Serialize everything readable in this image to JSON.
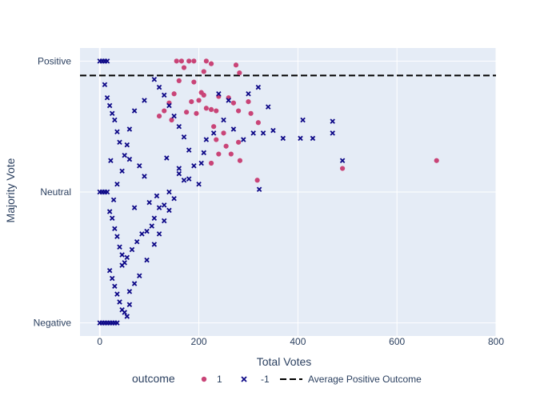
{
  "chart_data": {
    "type": "scatter",
    "xlabel": "Total Votes",
    "ylabel": "Majority Vote",
    "xlim": [
      -40,
      800
    ],
    "ylim": [
      -1.1,
      1.1
    ],
    "x_ticks": [
      0,
      200,
      400,
      600,
      800
    ],
    "y_ticks": [
      {
        "value": 1,
        "label": "Positive"
      },
      {
        "value": 0,
        "label": "Neutral"
      },
      {
        "value": -1,
        "label": "Negative"
      }
    ],
    "grid": true,
    "legend": {
      "title": "outcome",
      "position": "bottom",
      "entries": [
        "1",
        "-1",
        "Average Positive Outcome"
      ]
    },
    "colors": {
      "positive": "#c94477",
      "negative": "#0d0887",
      "reference": "#000000",
      "plot_bg": "#e5ecf6",
      "grid": "#ffffff",
      "text": "#2a3f5f"
    },
    "reference_line": {
      "name": "Average Positive Outcome",
      "y": 0.89,
      "style": "dash"
    },
    "series": [
      {
        "name": "1",
        "marker": "circle",
        "color": "#c94477",
        "points": [
          [
            155,
            1.0
          ],
          [
            165,
            1.0
          ],
          [
            180,
            1.0
          ],
          [
            190,
            1.0
          ],
          [
            215,
            1.0
          ],
          [
            225,
            0.98
          ],
          [
            275,
            0.97
          ],
          [
            282,
            0.91
          ],
          [
            170,
            0.95
          ],
          [
            160,
            0.85
          ],
          [
            190,
            0.84
          ],
          [
            205,
            0.76
          ],
          [
            210,
            0.74
          ],
          [
            240,
            0.73
          ],
          [
            260,
            0.72
          ],
          [
            300,
            0.69
          ],
          [
            185,
            0.69
          ],
          [
            215,
            0.64
          ],
          [
            225,
            0.63
          ],
          [
            235,
            0.62
          ],
          [
            270,
            0.68
          ],
          [
            280,
            0.62
          ],
          [
            175,
            0.61
          ],
          [
            195,
            0.6
          ],
          [
            230,
            0.5
          ],
          [
            250,
            0.45
          ],
          [
            235,
            0.4
          ],
          [
            255,
            0.35
          ],
          [
            280,
            0.38
          ],
          [
            305,
            0.6
          ],
          [
            320,
            0.53
          ],
          [
            225,
            0.22
          ],
          [
            240,
            0.29
          ],
          [
            265,
            0.29
          ],
          [
            283,
            0.24
          ],
          [
            318,
            0.09
          ],
          [
            490,
            0.18
          ],
          [
            680,
            0.24
          ],
          [
            145,
            0.55
          ],
          [
            120,
            0.58
          ],
          [
            130,
            0.62
          ],
          [
            200,
            0.7
          ],
          [
            210,
            0.92
          ],
          [
            150,
            0.75
          ],
          [
            140,
            0.68
          ]
        ]
      },
      {
        "name": "-1",
        "marker": "x",
        "color": "#0d0887",
        "points": [
          [
            0,
            1.0
          ],
          [
            5,
            1.0
          ],
          [
            10,
            1.0
          ],
          [
            15,
            1.0
          ],
          [
            0,
            0.0
          ],
          [
            5,
            0.0
          ],
          [
            10,
            0.0
          ],
          [
            15,
            0.0
          ],
          [
            0,
            -1.0
          ],
          [
            5,
            -1.0
          ],
          [
            10,
            -1.0
          ],
          [
            15,
            -1.0
          ],
          [
            20,
            -1.0
          ],
          [
            25,
            -1.0
          ],
          [
            30,
            -1.0
          ],
          [
            35,
            -1.0
          ],
          [
            320,
            0.8
          ],
          [
            300,
            0.75
          ],
          [
            340,
            0.65
          ],
          [
            410,
            0.55
          ],
          [
            405,
            0.41
          ],
          [
            470,
            0.45
          ],
          [
            490,
            0.24
          ],
          [
            470,
            0.54
          ],
          [
            430,
            0.41
          ],
          [
            370,
            0.41
          ],
          [
            350,
            0.47
          ],
          [
            330,
            0.45
          ],
          [
            322,
            0.02
          ],
          [
            310,
            0.45
          ],
          [
            290,
            0.4
          ],
          [
            270,
            0.48
          ],
          [
            260,
            0.7
          ],
          [
            240,
            0.75
          ],
          [
            250,
            0.55
          ],
          [
            230,
            0.45
          ],
          [
            215,
            0.4
          ],
          [
            210,
            0.3
          ],
          [
            205,
            0.22
          ],
          [
            190,
            0.2
          ],
          [
            200,
            0.06
          ],
          [
            180,
            0.1
          ],
          [
            170,
            0.09
          ],
          [
            160,
            0.14
          ],
          [
            150,
            -0.05
          ],
          [
            140,
            0.0
          ],
          [
            130,
            -0.1
          ],
          [
            120,
            -0.12
          ],
          [
            110,
            -0.2
          ],
          [
            105,
            -0.26
          ],
          [
            95,
            -0.3
          ],
          [
            85,
            -0.32
          ],
          [
            75,
            -0.38
          ],
          [
            65,
            -0.44
          ],
          [
            55,
            -0.5
          ],
          [
            45,
            -0.56
          ],
          [
            160,
            0.18
          ],
          [
            135,
            0.26
          ],
          [
            115,
            -0.03
          ],
          [
            100,
            -0.08
          ],
          [
            90,
            0.12
          ],
          [
            80,
            0.2
          ],
          [
            70,
            -0.12
          ],
          [
            60,
            0.25
          ],
          [
            50,
            0.28
          ],
          [
            40,
            0.38
          ],
          [
            35,
            0.46
          ],
          [
            30,
            0.55
          ],
          [
            25,
            0.6
          ],
          [
            20,
            0.66
          ],
          [
            15,
            0.72
          ],
          [
            10,
            0.82
          ],
          [
            20,
            -0.15
          ],
          [
            25,
            -0.2
          ],
          [
            30,
            -0.28
          ],
          [
            35,
            -0.34
          ],
          [
            40,
            -0.42
          ],
          [
            45,
            -0.48
          ],
          [
            50,
            -0.54
          ],
          [
            20,
            -0.6
          ],
          [
            25,
            -0.66
          ],
          [
            30,
            -0.72
          ],
          [
            35,
            -0.78
          ],
          [
            40,
            -0.84
          ],
          [
            45,
            -0.9
          ],
          [
            50,
            -0.92
          ],
          [
            55,
            -0.95
          ],
          [
            60,
            -0.86
          ],
          [
            60,
            -0.76
          ],
          [
            70,
            -0.7
          ],
          [
            80,
            -0.64
          ],
          [
            95,
            -0.52
          ],
          [
            110,
            -0.4
          ],
          [
            120,
            -0.32
          ],
          [
            130,
            -0.22
          ],
          [
            140,
            -0.14
          ],
          [
            180,
            0.32
          ],
          [
            170,
            0.42
          ],
          [
            160,
            0.5
          ],
          [
            150,
            0.58
          ],
          [
            140,
            0.66
          ],
          [
            130,
            0.74
          ],
          [
            120,
            0.8
          ],
          [
            110,
            0.86
          ],
          [
            90,
            0.7
          ],
          [
            70,
            0.62
          ],
          [
            60,
            0.48
          ],
          [
            55,
            0.36
          ],
          [
            45,
            0.16
          ],
          [
            35,
            0.06
          ],
          [
            28,
            -0.06
          ],
          [
            22,
            0.24
          ]
        ]
      }
    ]
  }
}
